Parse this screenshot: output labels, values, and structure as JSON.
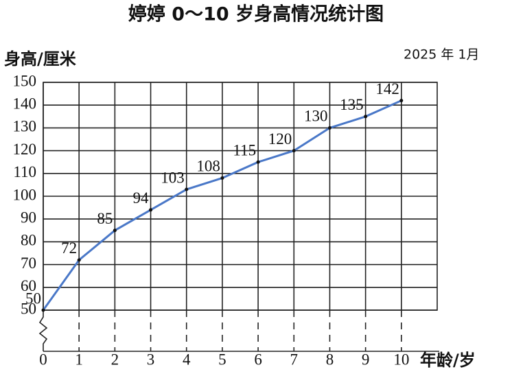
{
  "chart_data": {
    "type": "line",
    "title": "婷婷 0～10 岁身高情况统计图",
    "date": "2025 年  1月",
    "y_label": "身高/厘米",
    "x_label": "年龄/岁",
    "x": [
      0,
      1,
      2,
      3,
      4,
      5,
      6,
      7,
      8,
      9,
      10
    ],
    "values": [
      50,
      72,
      85,
      94,
      103,
      108,
      115,
      120,
      130,
      135,
      142
    ],
    "color": "#4a78c8",
    "xlim": [
      0,
      11
    ],
    "xticks": [
      0,
      1,
      2,
      3,
      4,
      5,
      6,
      7,
      8,
      9,
      10
    ],
    "ylim": [
      50,
      150
    ],
    "yticks": [
      50,
      60,
      70,
      80,
      90,
      100,
      110,
      120,
      130,
      140,
      150
    ],
    "grid": true
  }
}
